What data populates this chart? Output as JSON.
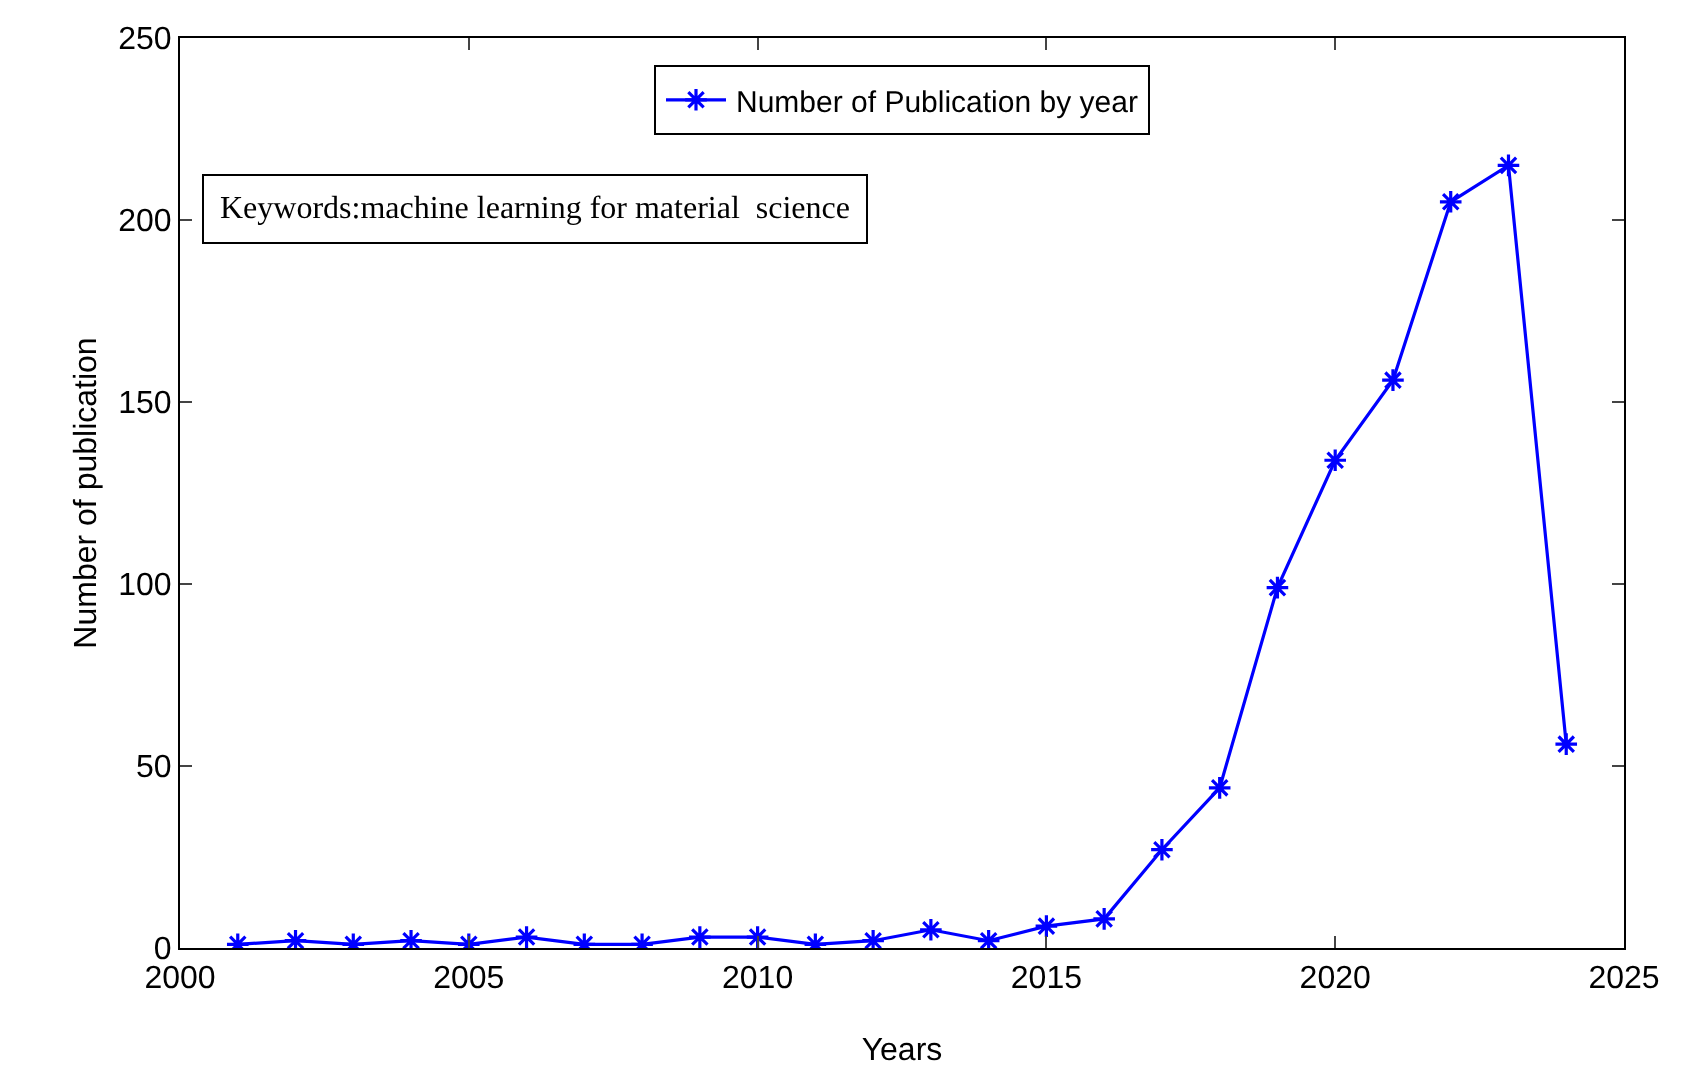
{
  "chart_data": {
    "type": "line",
    "xlabel": "Years",
    "ylabel": "Number of publication",
    "x": [
      2001,
      2002,
      2003,
      2004,
      2005,
      2006,
      2007,
      2008,
      2009,
      2010,
      2011,
      2012,
      2013,
      2014,
      2015,
      2016,
      2017,
      2018,
      2019,
      2020,
      2021,
      2022,
      2023,
      2024
    ],
    "series": [
      {
        "name": "Number of Publication by year",
        "color": "#0000ff",
        "values": [
          1,
          2,
          1,
          2,
          1,
          3,
          1,
          1,
          3,
          3,
          1,
          2,
          5,
          2,
          6,
          8,
          27,
          44,
          99,
          134,
          156,
          205,
          215,
          56
        ]
      }
    ],
    "xlim": [
      2000,
      2025
    ],
    "xticks": [
      2000,
      2005,
      2010,
      2015,
      2020,
      2025
    ],
    "ylim": [
      0,
      250
    ],
    "yticks": [
      0,
      50,
      100,
      150,
      200,
      250
    ],
    "annotations": [
      "Keywords:machine learning for material  science"
    ],
    "legend": "top",
    "grid": false,
    "marker": "cross",
    "line_style": "solid"
  }
}
